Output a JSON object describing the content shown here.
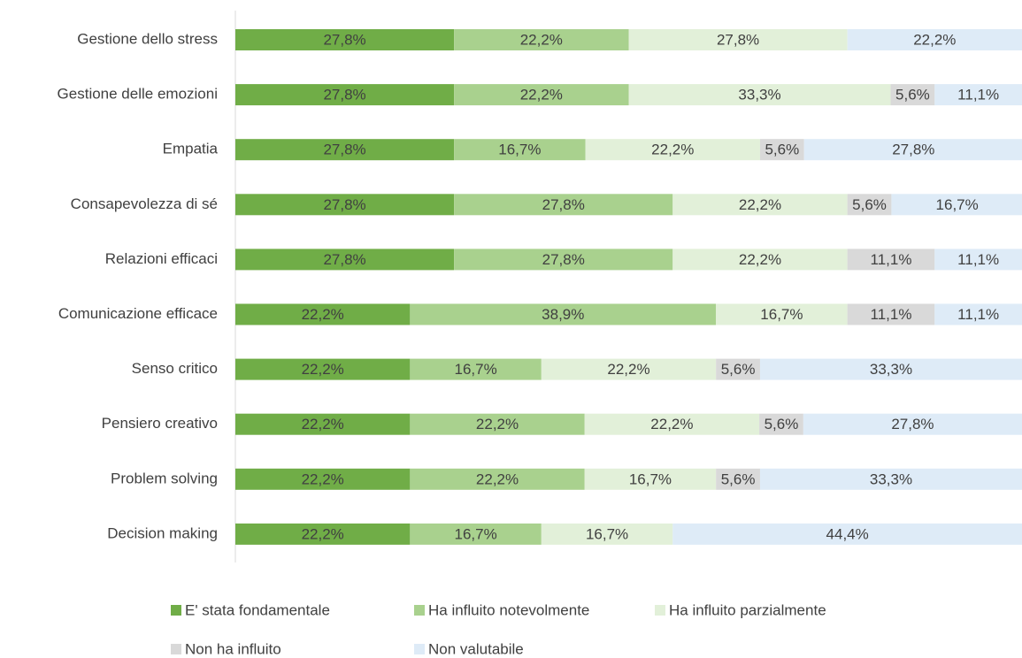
{
  "chart_data": {
    "type": "stacked-bar-horizontal",
    "categories": [
      "Gestione dello stress",
      "Gestione delle emozioni",
      "Empatia",
      "Consapevolezza di sé",
      "Relazioni efficaci",
      "Comunicazione efficace",
      "Senso critico",
      "Pensiero creativo",
      "Problem solving",
      "Decision making"
    ],
    "xlim": [
      0,
      100
    ],
    "series": [
      {
        "name": "E' stata fondamentale",
        "color": "#70ad47",
        "values": [
          27.8,
          27.8,
          27.8,
          27.8,
          27.8,
          22.2,
          22.2,
          22.2,
          22.2,
          22.2
        ],
        "value_labels": [
          "27,8%",
          "27,8%",
          "27,8%",
          "27,8%",
          "27,8%",
          "22,2%",
          "22,2%",
          "22,2%",
          "22,2%",
          "22,2%"
        ]
      },
      {
        "name": "Ha influito notevolmente",
        "color": "#a9d18e",
        "values": [
          22.2,
          22.2,
          16.7,
          27.8,
          27.8,
          38.9,
          16.7,
          22.2,
          22.2,
          16.7
        ],
        "value_labels": [
          "22,2%",
          "22,2%",
          "16,7%",
          "27,8%",
          "27,8%",
          "38,9%",
          "16,7%",
          "22,2%",
          "22,2%",
          "16,7%"
        ]
      },
      {
        "name": "Ha influito parzialmente",
        "color": "#e2f0d9",
        "values": [
          27.8,
          33.3,
          22.2,
          22.2,
          22.2,
          16.7,
          22.2,
          22.2,
          16.7,
          16.7
        ],
        "value_labels": [
          "27,8%",
          "33,3%",
          "22,2%",
          "22,2%",
          "22,2%",
          "16,7%",
          "22,2%",
          "22,2%",
          "16,7%",
          "16,7%"
        ]
      },
      {
        "name": "Non ha influito",
        "color": "#d9d9d9",
        "values": [
          null,
          5.6,
          5.6,
          5.6,
          11.1,
          11.1,
          5.6,
          5.6,
          5.6,
          null
        ],
        "value_labels": [
          null,
          "5,6%",
          "5,6%",
          "5,6%",
          "11,1%",
          "11,1%",
          "5,6%",
          "5,6%",
          "5,6%",
          null
        ]
      },
      {
        "name": "Non valutabile",
        "color": "#deebf7",
        "values": [
          22.2,
          11.1,
          27.8,
          16.7,
          11.1,
          11.1,
          33.3,
          27.8,
          33.3,
          44.4
        ],
        "value_labels": [
          "22,2%",
          "11,1%",
          "27,8%",
          "16,7%",
          "11,1%",
          "11,1%",
          "33,3%",
          "27,8%",
          "33,3%",
          "44,4%"
        ]
      }
    ]
  }
}
